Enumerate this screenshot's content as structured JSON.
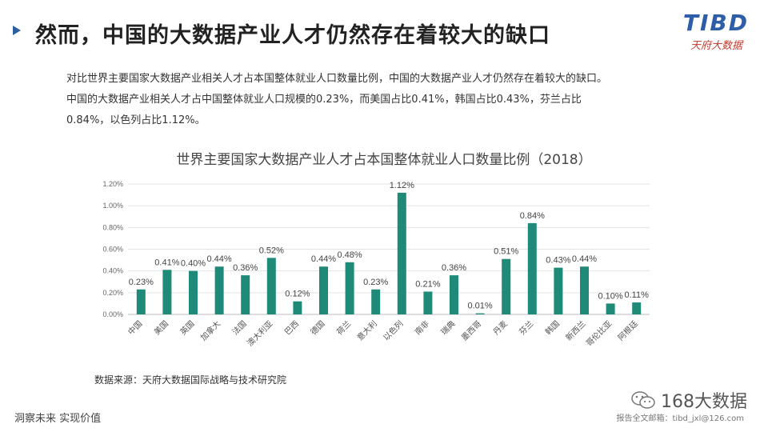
{
  "header": {
    "title": "然而，中国的大数据产业人才仍然存在着较大的缺口",
    "logo_main": "TIBD",
    "logo_sub": "天府大数据"
  },
  "intro": {
    "line1": "对比世界主要国家大数据产业相关人才占本国整体就业人口数量比例，中国的大数据产业人才仍然存在着较大的缺口。",
    "line2": "中国的大数据产业相关人才占中国整体就业人口规模的0.23%，而美国占比0.41%，韩国占比0.43%，芬兰占比",
    "line3": "0.84%，以色列占比1.12%。"
  },
  "chart_data": {
    "type": "bar",
    "title": "世界主要国家大数据产业人才占本国整体就业人口数量比例（2018）",
    "categories": [
      "中国",
      "美国",
      "英国",
      "加拿大",
      "法国",
      "澳大利亚",
      "巴西",
      "德国",
      "荷兰",
      "意大利",
      "以色列",
      "南非",
      "瑞典",
      "墨西哥",
      "丹麦",
      "芬兰",
      "韩国",
      "新西兰",
      "哥伦比亚",
      "阿根廷"
    ],
    "values": [
      0.23,
      0.41,
      0.4,
      0.44,
      0.36,
      0.52,
      0.12,
      0.44,
      0.48,
      0.23,
      1.12,
      0.21,
      0.36,
      0.01,
      0.51,
      0.84,
      0.43,
      0.44,
      0.1,
      0.11
    ],
    "value_labels": [
      "0.23%",
      "0.41%",
      "0.40%",
      "0.44%",
      "0.36%",
      "0.52%",
      "0.12%",
      "0.44%",
      "0.48%",
      "0.23%",
      "1.12%",
      "0.21%",
      "0.36%",
      "0.01%",
      "0.51%",
      "0.84%",
      "0.43%",
      "0.44%",
      "0.10%",
      "0.11%"
    ],
    "yticks": [
      "0.00%",
      "0.20%",
      "0.40%",
      "0.60%",
      "0.80%",
      "1.00%",
      "1.20%"
    ],
    "ylim": [
      0,
      1.2
    ],
    "grid": true,
    "bar_color": "#1f8a78"
  },
  "footer": {
    "source": "数据来源：天府大数据国际战略与技术研究院",
    "slogan": "洞察未来 实现价值",
    "wechat_name": "168大数据",
    "email_note": "报告全文邮箱：tibd_jxl@126.com"
  },
  "colors": {
    "accent": "#2e5f9e",
    "bar": "#1f8a78",
    "logo_red": "#c0392b"
  }
}
